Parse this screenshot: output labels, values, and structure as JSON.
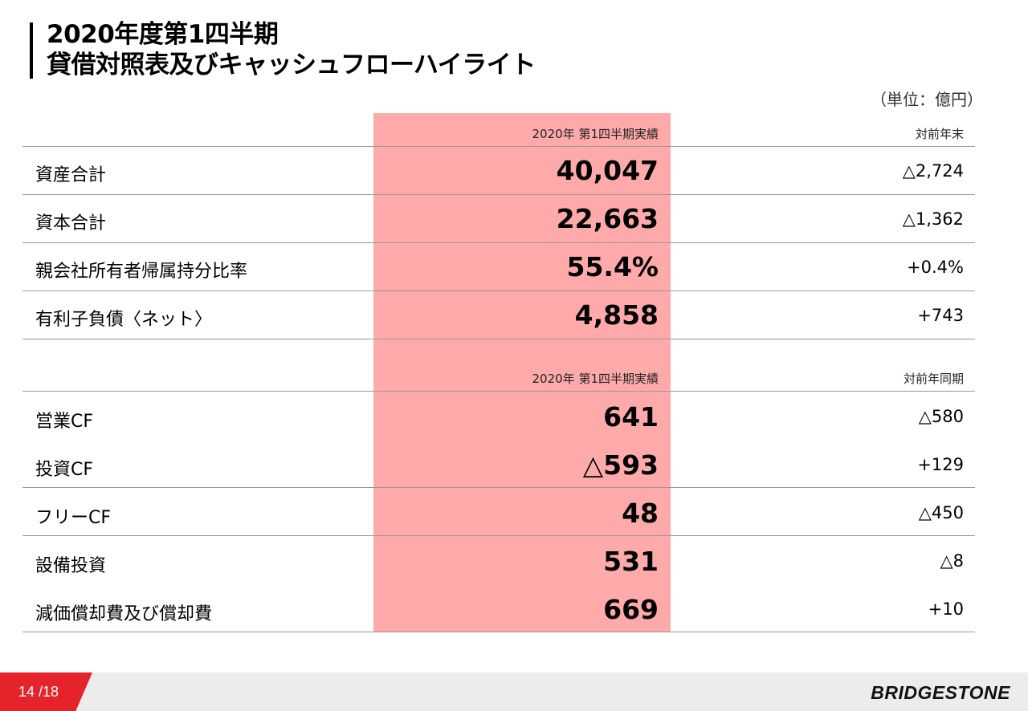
{
  "title": {
    "line1": "2020年度第1四半期",
    "line2": "貸借対照表及びキャッシュフローハイライト"
  },
  "unit": "（単位：億円）",
  "balance_sheet": {
    "column_header": "2020年 第1四半期実績",
    "change_header": "対前年末",
    "rows": [
      {
        "label": "資産合計",
        "value": "40,047",
        "change": "△2,724"
      },
      {
        "label": "資本合計",
        "value": "22,663",
        "change": "△1,362"
      },
      {
        "label": "親会社所有者帰属持分比率",
        "value": "55.4%",
        "change": "+0.4%"
      },
      {
        "label": "有利子負債〈ネット〉",
        "value": "4,858",
        "change": "+743"
      }
    ]
  },
  "cash_flow": {
    "column_header": "2020年 第1四半期実績",
    "change_header": "対前年同期",
    "rows": [
      {
        "label": "営業CF",
        "value": "641",
        "change": "△580"
      },
      {
        "label": "投資CF",
        "value": "△593",
        "change": "+129"
      },
      {
        "label": "フリーCF",
        "value": "48",
        "change": "△450"
      },
      {
        "label": "設備投資",
        "value": "531",
        "change": "△8"
      },
      {
        "label": "減価償却費及び償却費",
        "value": "669",
        "change": "+10"
      }
    ]
  },
  "footer": {
    "page": "14 /18",
    "logo": "BRIDGESTONE"
  },
  "colors": {
    "highlight": "#ffaaaa",
    "accent": "#e5232b"
  }
}
